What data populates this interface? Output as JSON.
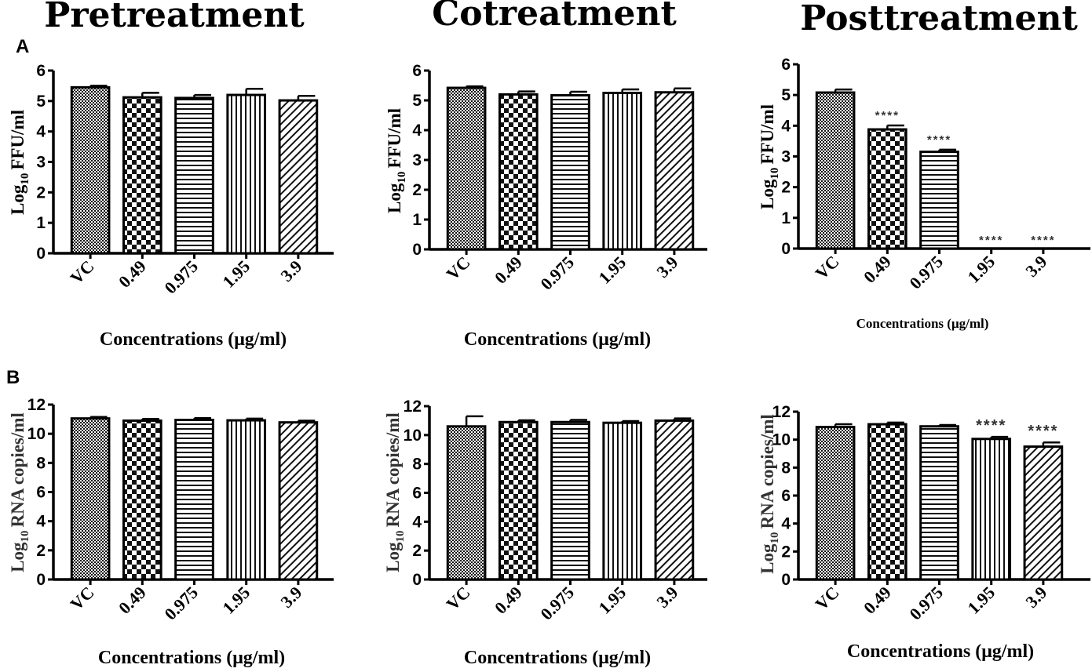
{
  "column_titles": [
    "Pretreatment",
    "Cotreatment",
    "Posttreatment"
  ],
  "panel_labels": [
    "A",
    "B"
  ],
  "chart_data": [
    {
      "type": "bar",
      "row": "A",
      "column": "Pretreatment",
      "categories": [
        "VC",
        "0.49",
        "0.975",
        "1.95",
        "3.9"
      ],
      "values": [
        5.45,
        5.12,
        5.1,
        5.2,
        5.02
      ],
      "errors": [
        0.05,
        0.15,
        0.1,
        0.2,
        0.15
      ],
      "significance": [
        "",
        "",
        "",
        "",
        ""
      ],
      "ylabel_main": "Log",
      "ylabel_sub": "10",
      "ylabel_rest": "FFU/ml",
      "xlabel": "Concentrations (μg/ml)",
      "ylim": [
        0,
        6
      ],
      "yticks": [
        "0",
        "1",
        "2",
        "3",
        "4",
        "5",
        "6"
      ]
    },
    {
      "type": "bar",
      "row": "A",
      "column": "Cotreatment",
      "categories": [
        "VC",
        "0.49",
        "0.975",
        "1.95",
        "3.9"
      ],
      "values": [
        5.42,
        5.2,
        5.17,
        5.25,
        5.27
      ],
      "errors": [
        0.05,
        0.1,
        0.12,
        0.12,
        0.13
      ],
      "significance": [
        "",
        "",
        "",
        "",
        ""
      ],
      "ylabel_main": "Log",
      "ylabel_sub": "10",
      "ylabel_rest": "FFU/ml",
      "xlabel": "Concentrations (μg/ml)",
      "ylim": [
        0,
        6
      ],
      "yticks": [
        "0",
        "1",
        "2",
        "3",
        "4",
        "5",
        "6"
      ]
    },
    {
      "type": "bar",
      "row": "A",
      "column": "Posttreatment",
      "categories": [
        "VC",
        "0.49",
        "0.975",
        "1.95",
        "3.9"
      ],
      "values": [
        5.08,
        3.88,
        3.15,
        0,
        0
      ],
      "errors": [
        0.1,
        0.13,
        0.07,
        0,
        0
      ],
      "significance": [
        "",
        "****",
        "****",
        "****",
        "****"
      ],
      "ylabel_main": "Log",
      "ylabel_sub": "10",
      "ylabel_rest": "FFU/ml",
      "xlabel": "Concentrations (μg/ml)",
      "ylim": [
        0,
        6
      ],
      "yticks": [
        "0",
        "1",
        "2",
        "3",
        "4",
        "5",
        "6"
      ]
    },
    {
      "type": "bar",
      "row": "B",
      "column": "Pretreatment",
      "categories": [
        "VC",
        "0.49",
        "0.975",
        "1.95",
        "3.9"
      ],
      "values": [
        11.05,
        10.9,
        10.95,
        10.92,
        10.78
      ],
      "errors": [
        0.1,
        0.12,
        0.12,
        0.12,
        0.12
      ],
      "significance": [
        "",
        "",
        "",
        "",
        ""
      ],
      "ylabel_main": "Log",
      "ylabel_sub": "10",
      "ylabel_rest": "RNA copies/ml",
      "xlabel": "Concentrations (μg/ml)",
      "ylim": [
        0,
        12
      ],
      "yticks": [
        "0",
        "2",
        "4",
        "6",
        "8",
        "10",
        "12"
      ]
    },
    {
      "type": "bar",
      "row": "B",
      "column": "Cotreatment",
      "categories": [
        "VC",
        "0.49",
        "0.975",
        "1.95",
        "3.9"
      ],
      "values": [
        10.6,
        10.9,
        10.9,
        10.85,
        11.0
      ],
      "errors": [
        0.7,
        0.12,
        0.15,
        0.12,
        0.15
      ],
      "significance": [
        "",
        "",
        "",
        "",
        ""
      ],
      "ylabel_main": "Log",
      "ylabel_sub": "10",
      "ylabel_rest": "RNA copies/ml",
      "xlabel": "Concentrations (μg/ml)",
      "ylim": [
        0,
        12
      ],
      "yticks": [
        "0",
        "2",
        "4",
        "6",
        "8",
        "10",
        "12"
      ]
    },
    {
      "type": "bar",
      "row": "B",
      "column": "Posttreatment",
      "categories": [
        "VC",
        "0.49",
        "0.975",
        "1.95",
        "3.9"
      ],
      "values": [
        10.9,
        11.1,
        10.95,
        10.05,
        9.5
      ],
      "errors": [
        0.2,
        0.12,
        0.1,
        0.15,
        0.3
      ],
      "significance": [
        "",
        "",
        "",
        "****",
        "****"
      ],
      "ylabel_main": "Log",
      "ylabel_sub": "10",
      "ylabel_rest": "RNA copies/ml",
      "xlabel": "Concentrations (μg/ml)",
      "ylim": [
        0,
        12
      ],
      "yticks": [
        "0",
        "2",
        "4",
        "6",
        "8",
        "10",
        "12"
      ]
    }
  ]
}
